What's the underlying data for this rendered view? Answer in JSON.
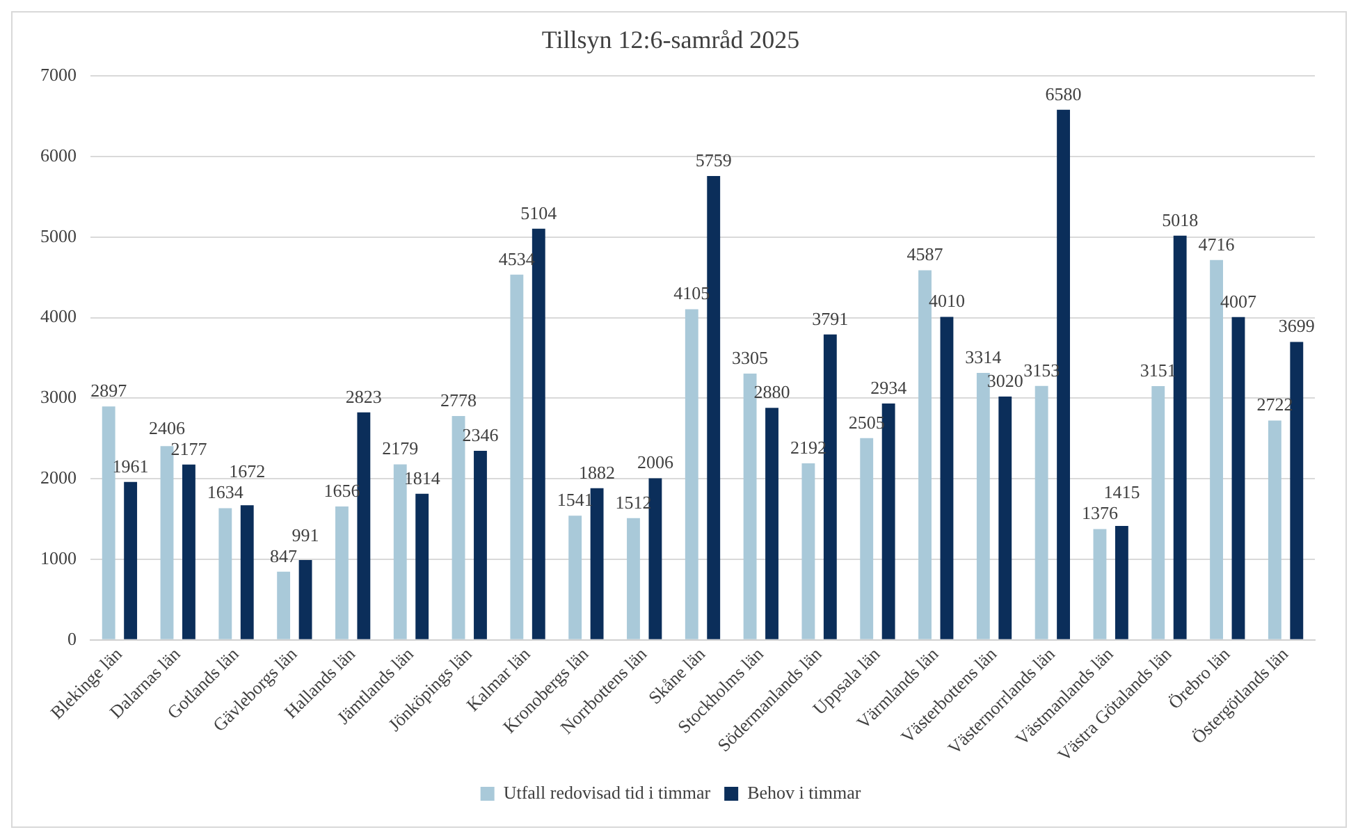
{
  "chart_data": {
    "type": "bar",
    "title": "Tillsyn 12:6-samråd 2025",
    "categories": [
      "Blekinge län",
      "Dalarnas län",
      "Gotlands län",
      "Gävleborgs län",
      "Hallands län",
      "Jämtlands län",
      "Jönköpings län",
      "Kalmar län",
      "Kronobergs län",
      "Norrbottens län",
      "Skåne län",
      "Stockholms län",
      "Södermanlands län",
      "Uppsala län",
      "Värmlands län",
      "Västerbottens län",
      "Västernorrlands län",
      "Västmanlands län",
      "Västra Götalands län",
      "Örebro län",
      "Östergötlands län"
    ],
    "series": [
      {
        "name": "Utfall redovisad tid i timmar",
        "color": "#a9c9d9",
        "values": [
          2897,
          2406,
          1634,
          847,
          1656,
          2179,
          2778,
          4534,
          1541,
          1512,
          4105,
          3305,
          2192,
          2505,
          4587,
          3314,
          3153,
          1376,
          3151,
          4716,
          2722
        ]
      },
      {
        "name": "Behov i timmar",
        "color": "#0b2e5a",
        "values": [
          1961,
          2177,
          1672,
          991,
          2823,
          1814,
          2346,
          5104,
          1882,
          2006,
          5759,
          2880,
          3791,
          2934,
          4010,
          3020,
          6580,
          1415,
          5018,
          4007,
          3699
        ]
      }
    ],
    "ylim": [
      0,
      7000
    ],
    "yticks": [
      0,
      1000,
      2000,
      3000,
      4000,
      5000,
      6000,
      7000
    ],
    "grid": "y",
    "legend": "bottom",
    "data_labels": true
  }
}
